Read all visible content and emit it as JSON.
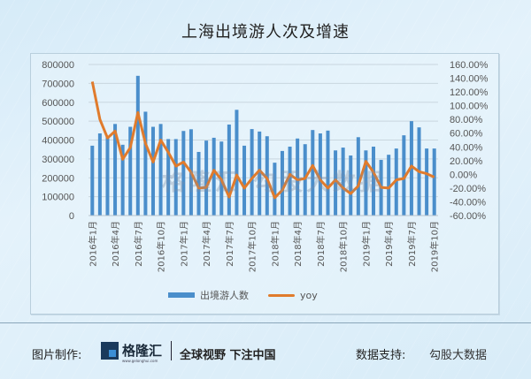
{
  "title": "上海出境游人次及增速",
  "chart_data": {
    "type": "bar+line",
    "title": "上海出境游人次及增速",
    "categories": [
      "2016-01",
      "2016-02",
      "2016-03",
      "2016-04",
      "2016-05",
      "2016-06",
      "2016-07",
      "2016-08",
      "2016-09",
      "2016-10",
      "2016-11",
      "2016-12",
      "2017-01",
      "2017-02",
      "2017-03",
      "2017-04",
      "2017-05",
      "2017-06",
      "2017-07",
      "2017-08",
      "2017-09",
      "2017-10",
      "2017-11",
      "2017-12",
      "2018-01",
      "2018-02",
      "2018-03",
      "2018-04",
      "2018-05",
      "2018-06",
      "2018-07",
      "2018-08",
      "2018-09",
      "2018-10",
      "2018-11",
      "2018-12",
      "2019-01",
      "2019-02",
      "2019-03",
      "2019-04",
      "2019-05",
      "2019-06",
      "2019-07",
      "2019-08",
      "2019-09",
      "2019-10"
    ],
    "tick_labels": [
      "2016年1月",
      "2016年4月",
      "2016年7月",
      "2016年10月",
      "2017年1月",
      "2017年4月",
      "2017年7月",
      "2017年10月",
      "2018年1月",
      "2018年4月",
      "2018年7月",
      "2018年10月",
      "2019年1月",
      "2019年4月",
      "2019年7月",
      "2019年10月"
    ],
    "series": [
      {
        "name": "出境游人数",
        "type": "bar",
        "axis": "left",
        "color": "#4a8ecb",
        "values": [
          370000,
          435000,
          415000,
          485000,
          375000,
          470000,
          740000,
          550000,
          470000,
          485000,
          405000,
          405000,
          448000,
          457000,
          337000,
          397000,
          412000,
          392000,
          482000,
          560000,
          370000,
          458000,
          445000,
          420000,
          280000,
          342000,
          365000,
          408000,
          378000,
          453000,
          435000,
          450000,
          345000,
          360000,
          318000,
          415000,
          345000,
          365000,
          295000,
          322000,
          355000,
          425000,
          500000,
          467000,
          355000,
          355000
        ]
      },
      {
        "name": "yoy",
        "type": "line",
        "axis": "right",
        "color": "#e07b2c",
        "unit": "%",
        "values": [
          135,
          80,
          53,
          63,
          22,
          39,
          90,
          45,
          18,
          50,
          32,
          12,
          18,
          3,
          -20,
          -19,
          6,
          -8,
          -33,
          -1,
          -20,
          -6,
          6,
          -6,
          -34,
          -23,
          0,
          -8,
          -6,
          13,
          -8,
          -20,
          -8,
          -20,
          -28,
          -17,
          19,
          3,
          -19,
          -20,
          -8,
          -6,
          12,
          4,
          1,
          -4
        ]
      }
    ],
    "left_axis": {
      "ticks": [
        "0",
        "100000",
        "200000",
        "300000",
        "400000",
        "500000",
        "600000",
        "700000",
        "800000"
      ],
      "ylim": [
        0,
        800000
      ]
    },
    "right_axis": {
      "ticks": [
        "-60.00%",
        "-40.00%",
        "-20.00%",
        "0.00%",
        "20.00%",
        "40.00%",
        "60.00%",
        "80.00%",
        "100.00%",
        "120.00%",
        "140.00%",
        "160.00%"
      ],
      "ylim": [
        -60,
        160
      ]
    },
    "grid": true,
    "legend_position": "bottom"
  },
  "legend": {
    "bar_label": "出境游人数",
    "line_label": "yoy"
  },
  "watermark": "格隆汇  勾股大数据",
  "footer": {
    "made_by_label": "图片制作:",
    "logo_name": "格隆汇",
    "logo_url_text": "www.gelonghui.com",
    "slogan": "全球视野 下注中国",
    "source_label": "数据支持:",
    "source_value": "勾股大数据"
  }
}
